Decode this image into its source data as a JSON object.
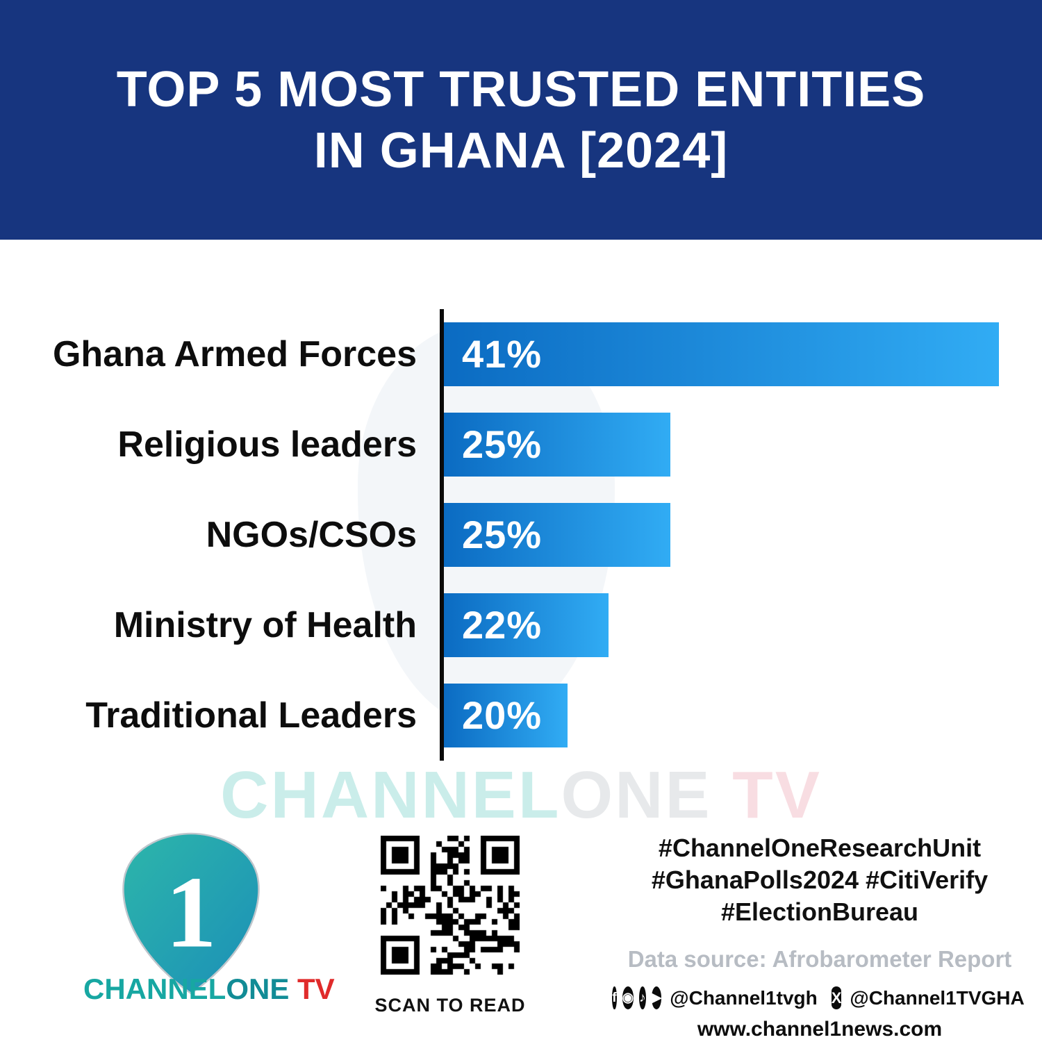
{
  "header": {
    "title_line1": "TOP 5 MOST TRUSTED ENTITIES",
    "title_line2": "IN GHANA [2024]",
    "bg_color": "#17357F"
  },
  "chart_data": {
    "type": "bar",
    "orientation": "horizontal",
    "title": "Top 5 Most Trusted Entities in Ghana [2024]",
    "categories": [
      "Ghana Armed Forces",
      "Religious leaders",
      "NGOs/CSOs",
      "Ministry of Health",
      "Traditional Leaders"
    ],
    "values": [
      41,
      25,
      25,
      22,
      20
    ],
    "value_labels": [
      "41%",
      "25%",
      "25%",
      "22%",
      "20%"
    ],
    "xlabel": "",
    "ylabel": "",
    "value_axis_visible": false,
    "grid": false,
    "legend": false,
    "bar_gradient": [
      "#0B6BC2",
      "#31ACF4"
    ],
    "axis_color": "#0a0a0a"
  },
  "watermark": {
    "channel": "CHANNEL",
    "one": "ONE",
    "tv": " TV"
  },
  "footer": {
    "brand": {
      "one_glyph": "1",
      "channel": "CHANNEL",
      "one": "ONE",
      "tv": " TV",
      "accent_teal": "#17a7a2",
      "accent_red": "#e02b2b"
    },
    "qr": {
      "caption": "SCAN TO READ"
    },
    "hashtags": [
      "#ChannelOneResearchUnit",
      "#GhanaPolls2024 #CitiVerify",
      "#ElectionBureau"
    ],
    "source": "Data source: Afrobarometer Report",
    "social": {
      "icons": [
        {
          "name": "facebook-icon",
          "glyph": "f"
        },
        {
          "name": "instagram-icon",
          "glyph": "◉"
        },
        {
          "name": "tiktok-icon",
          "glyph": "♪"
        },
        {
          "name": "youtube-icon",
          "glyph": "▶"
        }
      ],
      "handle1": "@Channel1tvgh",
      "x_glyph": "X",
      "handle2": "@Channel1TVGHA"
    },
    "website": "www.channel1news.com"
  }
}
